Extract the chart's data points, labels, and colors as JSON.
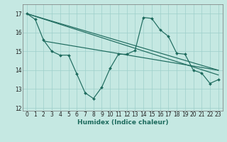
{
  "xlabel": "Humidex (Indice chaleur)",
  "xlim": [
    -0.5,
    23.5
  ],
  "ylim": [
    11.85,
    17.5
  ],
  "yticks": [
    12,
    13,
    14,
    15,
    16,
    17
  ],
  "xticks": [
    0,
    1,
    2,
    3,
    4,
    5,
    6,
    7,
    8,
    9,
    10,
    11,
    12,
    13,
    14,
    15,
    16,
    17,
    18,
    19,
    20,
    21,
    22,
    23
  ],
  "bg_color": "#c5e8e2",
  "grid_color": "#9dcfca",
  "line_color": "#1e6b5e",
  "data_x": [
    0,
    1,
    2,
    3,
    4,
    5,
    6,
    7,
    8,
    9,
    10,
    11,
    12,
    13,
    14,
    15,
    16,
    17,
    18,
    19,
    20,
    21,
    22,
    23
  ],
  "data_y": [
    17.0,
    16.7,
    15.6,
    15.0,
    14.8,
    14.8,
    13.8,
    12.8,
    12.5,
    13.1,
    14.1,
    14.85,
    14.85,
    15.05,
    16.8,
    16.75,
    16.15,
    15.8,
    14.9,
    14.85,
    14.0,
    13.85,
    13.3,
    13.5
  ],
  "trend1_x": [
    0,
    23
  ],
  "trend1_y": [
    17.0,
    13.75
  ],
  "trend2_x": [
    0,
    23
  ],
  "trend2_y": [
    17.0,
    14.0
  ],
  "trend3_x": [
    2,
    23
  ],
  "trend3_y": [
    15.55,
    14.0
  ]
}
